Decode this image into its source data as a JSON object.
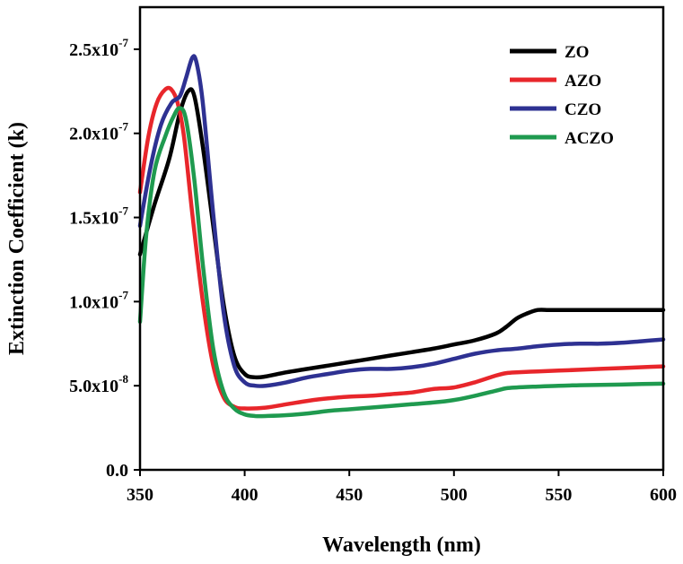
{
  "chart_data": {
    "type": "line",
    "title": "",
    "xlabel": "Wavelength (nm)",
    "ylabel": "Extinction Coefficient (k)",
    "xlim": [
      350,
      600
    ],
    "ylim": [
      0,
      2.75e-07
    ],
    "x_ticks": [
      {
        "value": 350,
        "label": "350"
      },
      {
        "value": 400,
        "label": "400"
      },
      {
        "value": 450,
        "label": "450"
      },
      {
        "value": 500,
        "label": "500"
      },
      {
        "value": 550,
        "label": "550"
      },
      {
        "value": 600,
        "label": "600"
      }
    ],
    "y_ticks": [
      {
        "value": 0,
        "mant": "0.0",
        "exp": ""
      },
      {
        "value": 5e-08,
        "mant": "5.0x10",
        "exp": "-8"
      },
      {
        "value": 1e-07,
        "mant": "1.0x10",
        "exp": "-7"
      },
      {
        "value": 1.5e-07,
        "mant": "1.5x10",
        "exp": "-7"
      },
      {
        "value": 2e-07,
        "mant": "2.0x10",
        "exp": "-7"
      },
      {
        "value": 2.5e-07,
        "mant": "2.5x10",
        "exp": "-7"
      }
    ],
    "legend_position": "top-right",
    "series": [
      {
        "name": "ZO",
        "color": "#000000",
        "x": [
          350,
          357,
          364,
          369,
          373,
          376,
          380,
          385,
          390,
          395,
          400,
          405,
          410,
          420,
          430,
          440,
          450,
          460,
          470,
          480,
          490,
          500,
          510,
          520,
          525,
          530,
          535,
          540,
          545,
          550,
          560,
          570,
          580,
          590,
          600
        ],
        "y": [
          1.28e-07,
          1.58e-07,
          1.85e-07,
          2.12e-07,
          2.25e-07,
          2.22e-07,
          1.92e-07,
          1.45e-07,
          9.8e-08,
          6.8e-08,
          5.7e-08,
          5.5e-08,
          5.55e-08,
          5.8e-08,
          6e-08,
          6.2e-08,
          6.4e-08,
          6.6e-08,
          6.8e-08,
          7e-08,
          7.2e-08,
          7.45e-08,
          7.7e-08,
          8.1e-08,
          8.5e-08,
          9e-08,
          9.3e-08,
          9.5e-08,
          9.5e-08,
          9.5e-08,
          9.5e-08,
          9.5e-08,
          9.5e-08,
          9.5e-08,
          9.5e-08
        ]
      },
      {
        "name": "AZO",
        "color": "#e8262b",
        "x": [
          350,
          354,
          358,
          362,
          365,
          368,
          371,
          375,
          380,
          385,
          390,
          395,
          400,
          410,
          420,
          430,
          440,
          450,
          460,
          470,
          480,
          490,
          500,
          510,
          520,
          525,
          530,
          540,
          550,
          560,
          570,
          580,
          590,
          600
        ],
        "y": [
          1.65e-07,
          1.98e-07,
          2.18e-07,
          2.26e-07,
          2.26e-07,
          2.18e-07,
          1.98e-07,
          1.52e-07,
          1e-07,
          6.2e-08,
          4.3e-08,
          3.75e-08,
          3.65e-08,
          3.7e-08,
          3.9e-08,
          4.1e-08,
          4.25e-08,
          4.35e-08,
          4.4e-08,
          4.5e-08,
          4.6e-08,
          4.8e-08,
          4.9e-08,
          5.2e-08,
          5.6e-08,
          5.75e-08,
          5.8e-08,
          5.85e-08,
          5.9e-08,
          5.95e-08,
          6e-08,
          6.05e-08,
          6.1e-08,
          6.15e-08
        ]
      },
      {
        "name": "CZO",
        "color": "#2e3192",
        "x": [
          350,
          355,
          360,
          365,
          369,
          372,
          375,
          377,
          380,
          385,
          390,
          395,
          400,
          405,
          410,
          420,
          430,
          440,
          450,
          460,
          470,
          480,
          490,
          500,
          510,
          520,
          530,
          540,
          550,
          560,
          570,
          580,
          590,
          600
        ],
        "y": [
          1.45e-07,
          1.8e-07,
          2.05e-07,
          2.18e-07,
          2.22e-07,
          2.33e-07,
          2.45e-07,
          2.42e-07,
          2.18e-07,
          1.52e-07,
          9.3e-08,
          6.2e-08,
          5.2e-08,
          5e-08,
          5e-08,
          5.2e-08,
          5.5e-08,
          5.7e-08,
          5.9e-08,
          6e-08,
          6e-08,
          6.1e-08,
          6.3e-08,
          6.6e-08,
          6.9e-08,
          7.1e-08,
          7.2e-08,
          7.35e-08,
          7.45e-08,
          7.5e-08,
          7.5e-08,
          7.55e-08,
          7.65e-08,
          7.75e-08
        ]
      },
      {
        "name": "ACZO",
        "color": "#1f9a4f",
        "x": [
          350,
          353,
          357,
          362,
          366,
          369,
          372,
          376,
          380,
          385,
          390,
          395,
          400,
          405,
          410,
          420,
          430,
          440,
          450,
          460,
          470,
          480,
          490,
          500,
          510,
          520,
          525,
          530,
          540,
          550,
          560,
          570,
          580,
          590,
          600
        ],
        "y": [
          8.8e-08,
          1.4e-07,
          1.78e-07,
          1.98e-07,
          2.1e-07,
          2.15e-07,
          2.08e-07,
          1.72e-07,
          1.22e-07,
          7.2e-08,
          4.6e-08,
          3.65e-08,
          3.3e-08,
          3.2e-08,
          3.2e-08,
          3.25e-08,
          3.35e-08,
          3.5e-08,
          3.6e-08,
          3.7e-08,
          3.8e-08,
          3.9e-08,
          4e-08,
          4.15e-08,
          4.4e-08,
          4.7e-08,
          4.85e-08,
          4.9e-08,
          4.95e-08,
          5e-08,
          5.03e-08,
          5.05e-08,
          5.07e-08,
          5.1e-08,
          5.12e-08
        ]
      }
    ]
  }
}
